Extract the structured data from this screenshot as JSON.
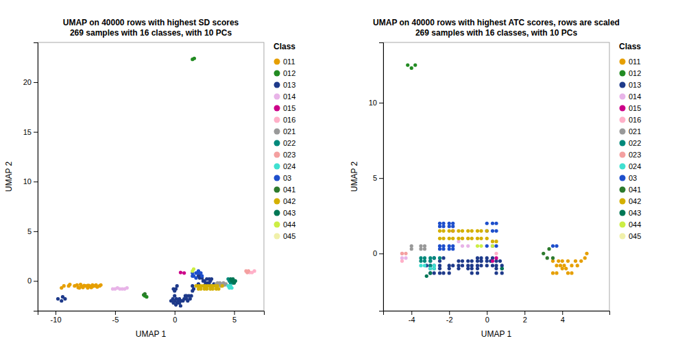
{
  "chart_data": [
    {
      "type": "scatter",
      "title": "UMAP on 40000 rows with highest SD scores\n269 samples with 16 classes, with 10 PCs",
      "x_label": "UMAP 1",
      "y_label": "UMAP 2",
      "xlim": [
        -11.5,
        7.5
      ],
      "ylim": [
        -3.0,
        24.0
      ],
      "xticks": [
        -10,
        -5,
        0,
        5
      ],
      "yticks": [
        0,
        5,
        10,
        15,
        20
      ],
      "grid": false,
      "legend": "right",
      "legend_title": "Class",
      "series": [
        {
          "name": "011",
          "color": "#E69F00",
          "x": [
            -9.5,
            -9.3,
            -8.9,
            -8.8,
            -8.4,
            -8.2,
            -8.1,
            -7.9,
            -8.0,
            -7.8,
            -7.6,
            -7.7,
            -7.5,
            -7.3,
            -7.3,
            -7.1,
            -7.2,
            -7.0,
            -6.9,
            -6.9,
            -6.7,
            -6.6,
            -6.5,
            -6.3,
            -6.2
          ],
          "values": [
            -0.7,
            -0.5,
            -0.5,
            -0.35,
            -0.5,
            -0.4,
            -0.65,
            -0.35,
            -0.7,
            -0.55,
            -0.45,
            -0.65,
            -0.5,
            -0.45,
            -0.7,
            -0.55,
            -0.45,
            -0.65,
            -0.55,
            -0.4,
            -0.5,
            -0.4,
            -0.6,
            -0.5,
            -0.4
          ]
        },
        {
          "name": "012",
          "color": "#228B22",
          "x": [
            1.5,
            1.65,
            -2.5,
            -2.35,
            -2.6
          ],
          "values": [
            22.3,
            22.4,
            -1.5,
            -1.6,
            -1.4
          ]
        },
        {
          "name": "013",
          "color": "#1E3A8A",
          "x": [
            -9.8,
            -9.5,
            -9.2,
            -9.4,
            -0.3,
            -0.15,
            -0.1,
            0.0,
            0.0,
            0.1,
            0.15,
            0.2,
            0.3,
            0.3,
            0.4,
            0.4,
            0.5,
            0.5,
            0.6,
            0.7,
            0.8,
            0.9,
            1.0,
            1.0,
            1.1,
            1.2,
            1.3,
            1.4,
            0.0,
            -0.1,
            0.1,
            0.2,
            1.5,
            1.5,
            1.6,
            2.0,
            2.1,
            2.2,
            2.3,
            2.4,
            2.0,
            2.5,
            2.5,
            2.6,
            2.7,
            2.7,
            2.8,
            2.9,
            2.9,
            3.0,
            3.0,
            3.1,
            3.2,
            3.3
          ],
          "values": [
            -1.8,
            -2.0,
            -1.8,
            -1.6,
            -2.0,
            -1.8,
            -2.2,
            -1.5,
            -2.0,
            -2.4,
            -1.8,
            -2.2,
            -2.0,
            -2.2,
            -1.8,
            -2.2,
            -2.0,
            -2.5,
            -2.0,
            -2.0,
            -1.8,
            -1.5,
            -1.5,
            -1.8,
            -2.0,
            -1.5,
            -1.8,
            -1.5,
            -1.0,
            -0.8,
            -0.8,
            -0.5,
            -1.0,
            -0.5,
            -0.8,
            0.5,
            0.3,
            0.5,
            0.3,
            0.0,
            -0.3,
            0.0,
            -0.5,
            -0.2,
            -0.5,
            0.2,
            -0.2,
            0.2,
            -0.2,
            -0.5,
            0.0,
            0.2,
            -0.5,
            -0.3
          ]
        },
        {
          "name": "014",
          "color": "#E8B4E8",
          "x": [
            -5.2,
            -5.0,
            -4.8,
            -4.6,
            -4.4,
            -4.2,
            -4.0
          ],
          "values": [
            -0.8,
            -0.8,
            -0.7,
            -0.8,
            -0.8,
            -0.8,
            -0.7
          ]
        },
        {
          "name": "015",
          "color": "#CC0088",
          "x": [
            0.8,
            0.5
          ],
          "values": [
            0.8,
            0.85
          ]
        },
        {
          "name": "016",
          "color": "#FFB0C8",
          "x": [
            6.3,
            6.5,
            6.7
          ],
          "values": [
            0.85,
            0.85,
            1.0
          ]
        },
        {
          "name": "021",
          "color": "#999999",
          "x": [
            3.5,
            3.6,
            3.7,
            3.8,
            3.9,
            4.0,
            4.1,
            4.2,
            4.3
          ],
          "values": [
            -0.3,
            -0.2,
            -0.4,
            -0.2,
            -0.5,
            -0.3,
            -0.2,
            -0.4,
            -0.3
          ]
        },
        {
          "name": "022",
          "color": "#00897B",
          "x": [
            4.5,
            4.6,
            4.7,
            4.8,
            4.9,
            5.0
          ],
          "values": [
            0.2,
            0.0,
            -0.2,
            0.0,
            -0.2,
            0.0
          ]
        },
        {
          "name": "023",
          "color": "#F4A0A0",
          "x": [
            6.0,
            6.1,
            6.2
          ],
          "values": [
            1.0,
            0.85,
            1.0
          ]
        },
        {
          "name": "024",
          "color": "#40E0D0",
          "x": [
            4.5,
            4.6,
            4.7,
            4.8
          ],
          "values": [
            -0.5,
            -0.7,
            -0.5,
            -0.7
          ]
        },
        {
          "name": "03",
          "color": "#1E4FCC",
          "x": [
            1.5,
            1.5,
            1.6,
            1.8,
            1.8,
            1.9,
            2.0,
            2.1,
            2.2,
            2.3
          ],
          "values": [
            0.8,
            0.5,
            0.5,
            0.8,
            0.3,
            0.8,
            1.0,
            0.8,
            0.8,
            0.5
          ]
        },
        {
          "name": "041",
          "color": "#2D7A2D",
          "x": [
            -2.5
          ],
          "values": [
            -1.3
          ]
        },
        {
          "name": "042",
          "color": "#D4B000",
          "x": [
            1.8,
            2.0,
            2.0,
            2.2,
            2.2,
            2.4,
            2.5,
            2.6,
            2.7,
            2.8,
            3.0,
            3.0,
            3.2,
            3.2,
            3.4,
            3.5,
            3.6,
            3.7,
            4.0
          ],
          "values": [
            -0.5,
            -0.5,
            -0.8,
            -0.5,
            -0.8,
            -0.5,
            -0.8,
            -0.5,
            -0.8,
            -0.5,
            -0.8,
            -0.5,
            -0.8,
            -0.5,
            -0.5,
            -0.8,
            -0.5,
            -0.8,
            -0.5
          ]
        },
        {
          "name": "043",
          "color": "#007755",
          "x": [
            4.7,
            4.8,
            4.9,
            5.0,
            5.1
          ],
          "values": [
            0.2,
            0.0,
            0.2,
            -0.2,
            0.0
          ]
        },
        {
          "name": "044",
          "color": "#CCEE44",
          "x": [
            1.5,
            1.6
          ],
          "values": [
            1.0,
            1.2
          ]
        },
        {
          "name": "045",
          "color": "#F0F0AA",
          "x": [],
          "values": []
        }
      ]
    },
    {
      "type": "scatter",
      "title": "UMAP on 40000 rows with highest ATC scores, rows are scaled\n269 samples with 16 classes, with 10 PCs",
      "x_label": "UMAP 1",
      "y_label": "UMAP 2",
      "xlim": [
        -5.5,
        6.5
      ],
      "ylim": [
        -3.8,
        14.0
      ],
      "xticks": [
        -4,
        -2,
        0,
        2,
        4
      ],
      "yticks": [
        0,
        5,
        10
      ],
      "grid": false,
      "legend": "right",
      "legend_title": "Class",
      "series": [
        {
          "name": "011",
          "color": "#E69F00",
          "x": [
            3.5,
            3.7,
            3.8,
            3.9,
            4.0,
            4.1,
            4.3,
            4.5,
            4.7,
            4.8,
            5.0,
            5.2,
            5.3,
            4.0,
            4.2,
            4.3,
            4.5,
            3.5,
            3.7
          ],
          "values": [
            -0.5,
            -0.8,
            -0.5,
            -0.8,
            -0.5,
            -0.8,
            -0.5,
            -0.8,
            -0.5,
            -0.8,
            -0.5,
            -0.3,
            0.0,
            -1.0,
            -1.0,
            -1.3,
            -1.3,
            -1.3,
            -1.3
          ]
        },
        {
          "name": "012",
          "color": "#228B22",
          "x": [
            -4.2,
            -4.0,
            -3.8
          ],
          "values": [
            12.5,
            12.3,
            12.5
          ]
        },
        {
          "name": "013",
          "color": "#1E3A8A",
          "x": [
            -3.0,
            -2.8,
            -2.5,
            -2.3,
            -2.0,
            -2.5,
            -2.8,
            -3.0,
            -2.5,
            -2.8,
            -3.0,
            -3.2,
            -3.0,
            -2.5,
            -2.8,
            -2.0,
            -2.0,
            -2.3,
            -1.8,
            -1.5,
            -1.5,
            -1.3,
            -1.0,
            -1.0,
            -1.3,
            -1.5,
            -1.0,
            -0.8,
            -0.8,
            -0.5,
            -0.3,
            -0.5,
            -0.3,
            0.0,
            0.0,
            0.2,
            0.3,
            0.5,
            0.5,
            0.7,
            0.8,
            0.5,
            0.8,
            0.5,
            0.8,
            -0.3,
            -0.3,
            0.0,
            0.3,
            -0.5,
            -0.5,
            -0.5,
            -0.8,
            -0.8
          ],
          "values": [
            -0.5,
            -0.3,
            -0.5,
            -0.3,
            -0.8,
            -0.8,
            -0.8,
            -0.8,
            -1.0,
            -1.0,
            -1.0,
            -0.8,
            -1.3,
            -1.3,
            -1.3,
            -1.0,
            -1.3,
            -1.3,
            -0.8,
            -0.8,
            -0.5,
            -0.5,
            -0.5,
            -0.8,
            -0.8,
            -1.0,
            -1.0,
            -0.8,
            -0.5,
            -0.5,
            -0.5,
            -0.8,
            -0.8,
            -0.5,
            -0.8,
            -0.5,
            -0.8,
            -0.5,
            -0.8,
            -0.5,
            -0.8,
            -1.0,
            -1.0,
            -1.3,
            -1.3,
            -0.3,
            -0.5,
            -0.3,
            -0.3,
            -0.3,
            -1.0,
            -1.3,
            -1.0,
            -1.3
          ]
        },
        {
          "name": "014",
          "color": "#E8B4E8",
          "x": [
            -4.5,
            -4.3,
            -4.5,
            -1.5,
            -1.3,
            -1.3,
            -1.0,
            -1.0
          ],
          "values": [
            0.0,
            -0.3,
            -0.3,
            0.8,
            0.5,
            1.0,
            1.0,
            0.5
          ]
        },
        {
          "name": "015",
          "color": "#CC0088",
          "x": [
            -1.8,
            0.3,
            0.5
          ],
          "values": [
            1.5,
            -0.5,
            -0.3
          ]
        },
        {
          "name": "016",
          "color": "#FFB0C8",
          "x": [
            -4.5,
            0.5
          ],
          "values": [
            -0.5,
            0.0
          ]
        },
        {
          "name": "021",
          "color": "#999999",
          "x": [
            -3.5,
            -3.3,
            -3.5,
            -3.3,
            -4.0,
            -4.0
          ],
          "values": [
            0.5,
            0.3,
            0.3,
            0.5,
            0.3,
            0.5
          ]
        },
        {
          "name": "022",
          "color": "#00897B",
          "x": [
            -3.5,
            -3.3,
            -3.5,
            -3.3,
            -3.0,
            -3.0,
            -3.0,
            -2.8,
            -2.5
          ],
          "values": [
            -0.5,
            -0.3,
            -0.3,
            -0.5,
            -0.3,
            -0.5,
            -0.8,
            -0.3,
            -0.3
          ]
        },
        {
          "name": "023",
          "color": "#F4A0A0",
          "x": [
            -4.5,
            -4.3
          ],
          "values": [
            0.0,
            0.0
          ]
        },
        {
          "name": "024",
          "color": "#40E0D0",
          "x": [
            -3.5,
            -3.3,
            -3.0,
            -2.8,
            -2.8
          ],
          "values": [
            -0.8,
            -0.8,
            -1.0,
            -1.0,
            -0.8
          ]
        },
        {
          "name": "03",
          "color": "#1E4FCC",
          "x": [
            -2.0,
            -2.3,
            -2.5,
            -2.5,
            -2.3,
            -2.0,
            -1.8,
            -1.8,
            -2.0,
            -2.3,
            -2.5,
            -1.8,
            -2.5,
            -2.3,
            -2.0,
            -1.8,
            0.0,
            0.3,
            0.5,
            0.3,
            0.5,
            0.0,
            0.3,
            0.5,
            0.0,
            3.5,
            3.7
          ],
          "values": [
            0.3,
            0.3,
            0.3,
            0.5,
            0.5,
            0.5,
            0.3,
            0.5,
            2.0,
            2.0,
            2.0,
            2.0,
            1.8,
            1.8,
            1.8,
            1.8,
            0.5,
            0.5,
            0.5,
            1.5,
            1.5,
            1.5,
            2.0,
            2.0,
            2.0,
            0.5,
            0.5
          ]
        },
        {
          "name": "041",
          "color": "#2D7A2D",
          "x": [
            3.0,
            3.2,
            3.5,
            3.3
          ],
          "values": [
            0.0,
            -0.3,
            -0.3,
            0.3
          ]
        },
        {
          "name": "042",
          "color": "#D4B000",
          "x": [
            -2.5,
            -2.3,
            -2.0,
            -1.8,
            -2.5,
            -2.3,
            -2.0,
            -1.8,
            -1.5,
            -1.5,
            -1.3,
            -1.3,
            -1.0,
            -1.0,
            -0.8,
            -0.8,
            -0.5,
            -0.3,
            0.0,
            -0.5,
            -0.3,
            0.0,
            0.3,
            0.5
          ],
          "values": [
            1.5,
            1.5,
            1.5,
            1.5,
            1.0,
            1.0,
            1.0,
            1.0,
            1.0,
            1.5,
            1.0,
            1.5,
            1.5,
            1.0,
            1.0,
            1.5,
            1.5,
            1.5,
            1.5,
            1.0,
            1.0,
            1.0,
            0.8,
            0.8
          ]
        },
        {
          "name": "043",
          "color": "#007755",
          "x": [
            -3.0,
            -3.2,
            0.8
          ],
          "values": [
            -1.3,
            -1.5,
            -1.0
          ]
        },
        {
          "name": "044",
          "color": "#CCEE44",
          "x": [
            -0.3,
            -0.5,
            0.3
          ],
          "values": [
            0.5,
            0.5,
            0.5
          ]
        },
        {
          "name": "045",
          "color": "#F0F0AA",
          "x": [],
          "values": []
        }
      ]
    }
  ]
}
